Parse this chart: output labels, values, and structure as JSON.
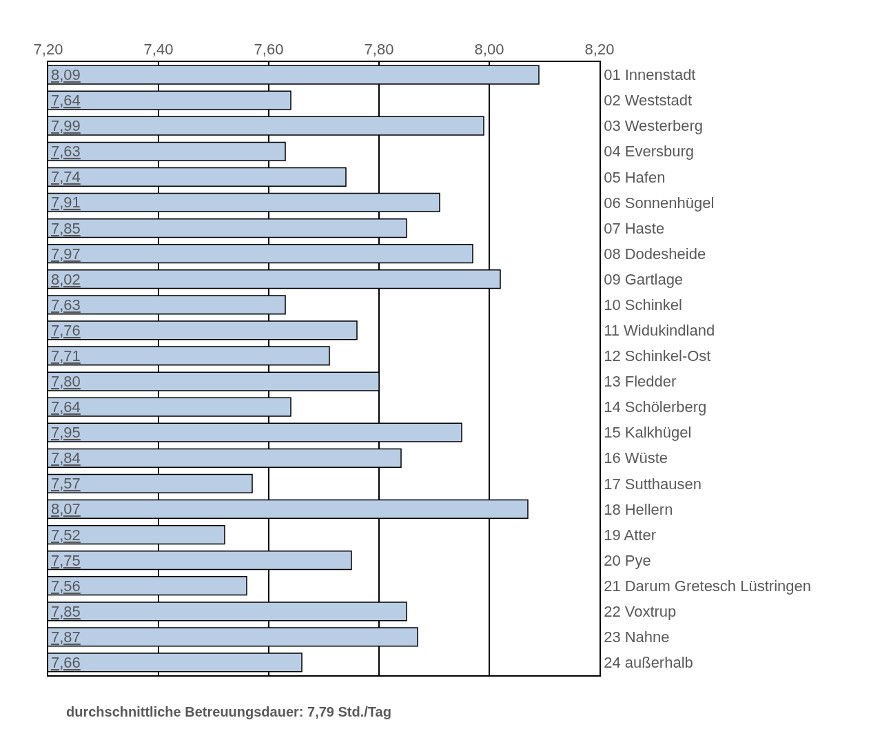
{
  "chart_data": {
    "type": "bar",
    "orientation": "horizontal",
    "categories": [
      "01 Innenstadt",
      "02 Weststadt",
      "03 Westerberg",
      "04 Eversburg",
      "05 Hafen",
      "06 Sonnenhügel",
      "07 Haste",
      "08 Dodesheide",
      "09 Gartlage",
      "10 Schinkel",
      "11 Widukindland",
      "12 Schinkel-Ost",
      "13 Fledder",
      "14 Schölerberg",
      "15 Kalkhügel",
      "16 Wüste",
      "17 Sutthausen",
      "18 Hellern",
      "19 Atter",
      "20 Pye",
      "21 Darum Gretesch Lüstringen",
      "22 Voxtrup",
      "23 Nahne",
      "24 außerhalb"
    ],
    "values": [
      8.09,
      7.64,
      7.99,
      7.63,
      7.74,
      7.91,
      7.85,
      7.97,
      8.02,
      7.63,
      7.76,
      7.71,
      7.8,
      7.64,
      7.95,
      7.84,
      7.57,
      8.07,
      7.52,
      7.75,
      7.56,
      7.85,
      7.87,
      7.66
    ],
    "value_labels": [
      "8,09",
      "7,64",
      "7,99",
      "7,63",
      "7,74",
      "7,91",
      "7,85",
      "7,97",
      "8,02",
      "7,63",
      "7,76",
      "7,71",
      "7,80",
      "7,64",
      "7,95",
      "7,84",
      "7,57",
      "8,07",
      "7,52",
      "7,75",
      "7,56",
      "7,85",
      "7,87",
      "7,66"
    ],
    "color": "#b9cde5",
    "xlim": [
      7.2,
      8.2
    ],
    "xticks": [
      {
        "value": 7.2,
        "label": "7,20"
      },
      {
        "value": 7.4,
        "label": "7,40"
      },
      {
        "value": 7.6,
        "label": "7,60"
      },
      {
        "value": 7.8,
        "label": "7,80"
      },
      {
        "value": 8.0,
        "label": "8,00"
      },
      {
        "value": 8.2,
        "label": "8,20"
      }
    ],
    "grid": "x",
    "annotations": [
      "durchschnittliche Betreuungsdauer: 7,79 Std./Tag"
    ]
  }
}
